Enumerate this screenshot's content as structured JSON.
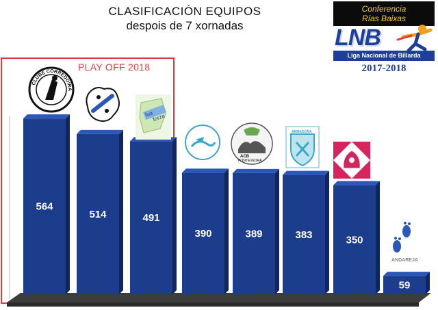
{
  "header": {
    "title": "CLASIFICACIÓN EQUIPOS",
    "subtitle": "despois de 7 xornadas"
  },
  "brand": {
    "conference_line1": "Conferencia",
    "conference_line2": "Rías Baixas",
    "logo_text": "LNB",
    "league_name": "Liga Nacional de Billarda",
    "season": "2017-2018"
  },
  "playoff": {
    "label": "PLAY OFF 2018"
  },
  "logo_texts": {
    "team1": "CLUBE CORREDOIRAS",
    "team3a": "lua",
    "team3b": "forza",
    "team5": "PONTEVEDRA",
    "team6": "ARMADOÑA",
    "team8": "ANDAREJA"
  },
  "colors": {
    "bar_front": "#1b3d8c",
    "bar_top": "#2a57b8",
    "bar_side": "#0f2660",
    "floor": "#3c3c3c",
    "playoff_border": "#e23b3b",
    "brand_blue": "#1d3f9a",
    "brand_yellow": "#f2d21a"
  },
  "chart_data": {
    "type": "bar",
    "title": "CLASIFICACIÓN EQUIPOS",
    "subtitle": "despois de 7 xornadas",
    "categories": [
      "",
      "",
      "",
      "",
      "",
      "",
      "",
      ""
    ],
    "values": [
      564,
      514,
      491,
      390,
      389,
      383,
      350,
      59
    ],
    "ylim": [
      0,
      650
    ],
    "grid": false,
    "annotations": [
      "PLAY OFF 2018"
    ]
  }
}
